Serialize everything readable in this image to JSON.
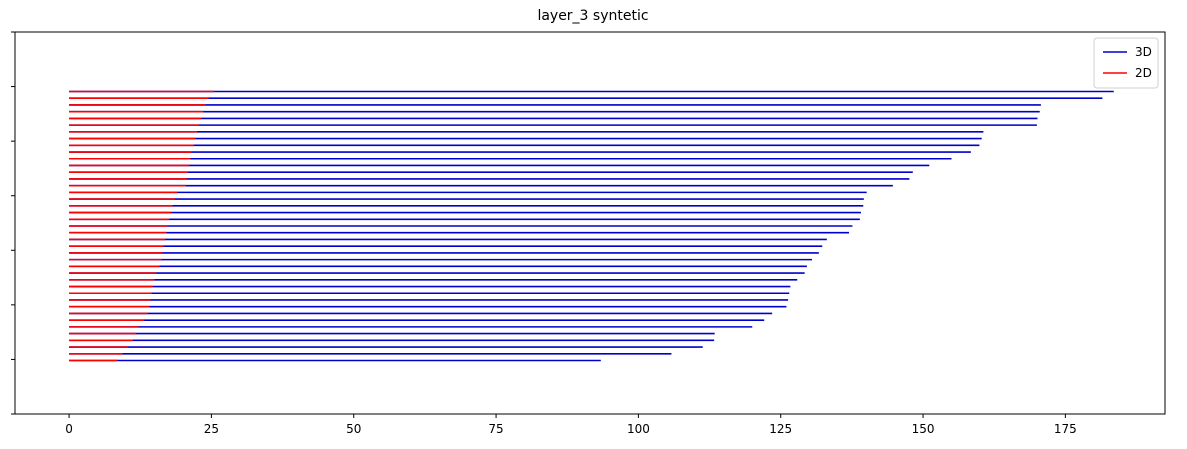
{
  "chart_data": {
    "type": "bar",
    "orientation": "horizontal",
    "title": "layer_3 syntetic",
    "xlabel": "",
    "ylabel": "",
    "xlim": [
      -9.5,
      192.5
    ],
    "x_ticks": [
      0,
      25,
      50,
      75,
      100,
      125,
      150,
      175
    ],
    "x_tick_labels": [
      "0",
      "25",
      "50",
      "75",
      "100",
      "125",
      "150",
      "175"
    ],
    "y_tick_count": 8,
    "grid": false,
    "legend_position": "top-right",
    "series": [
      {
        "name": "3D",
        "color": "#0000cc",
        "values": [
          183.5,
          181.5,
          170.7,
          170.5,
          170.1,
          170.0,
          160.6,
          160.3,
          159.9,
          158.4,
          155.0,
          151.1,
          148.2,
          147.6,
          144.7,
          140.1,
          139.6,
          139.5,
          139.1,
          138.9,
          137.6,
          137.0,
          133.1,
          132.3,
          131.7,
          130.5,
          129.6,
          129.2,
          127.9,
          126.7,
          126.5,
          126.3,
          126.0,
          123.5,
          122.1,
          120.0,
          113.4,
          113.3,
          111.3,
          105.8,
          93.4
        ]
      },
      {
        "name": "2D",
        "color": "#ff0000",
        "values": [
          25.5,
          24.5,
          24.0,
          23.6,
          23.2,
          22.8,
          22.5,
          22.2,
          21.9,
          21.5,
          21.3,
          21.1,
          20.9,
          20.7,
          20.5,
          19.0,
          18.6,
          18.2,
          17.9,
          17.6,
          17.3,
          17.1,
          16.9,
          16.6,
          16.4,
          16.2,
          15.9,
          15.3,
          15.0,
          14.7,
          14.5,
          14.3,
          14.1,
          13.8,
          13.2,
          12.2,
          11.8,
          11.2,
          10.3,
          9.4,
          8.5
        ]
      }
    ]
  }
}
